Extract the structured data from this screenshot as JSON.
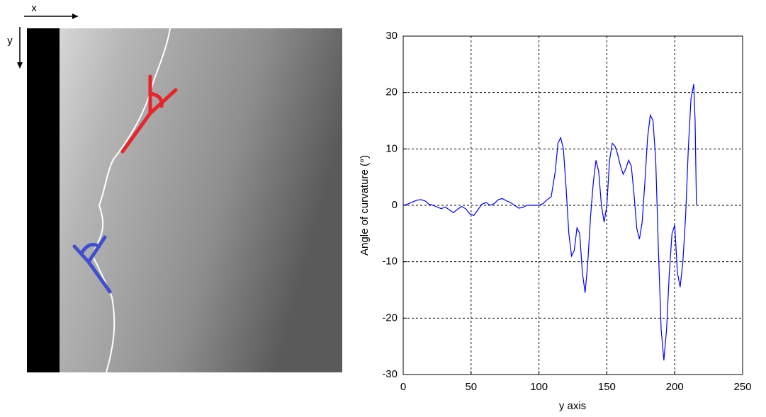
{
  "figure_labels": {
    "x_arrow": "x",
    "y_arrow": "y"
  },
  "chart_data": {
    "type": "line",
    "xlabel": "y axis",
    "ylabel": "Angle of curvature (°)",
    "xlim": [
      0,
      250
    ],
    "xticks": [
      0,
      50,
      100,
      150,
      200,
      250
    ],
    "ylim": [
      -30,
      30
    ],
    "yticks": [
      -30,
      -20,
      -10,
      0,
      10,
      20,
      30
    ],
    "grid": true,
    "series": [
      {
        "color": "#0000ff",
        "x": [
          0,
          3,
          6,
          10,
          13,
          16,
          19,
          22,
          25,
          28,
          31,
          34,
          37,
          40,
          43,
          46,
          49,
          52,
          55,
          58,
          61,
          64,
          67,
          70,
          73,
          76,
          79,
          82,
          85,
          88,
          91,
          95,
          100,
          103,
          106,
          109,
          112,
          114,
          116,
          118,
          120,
          122,
          124,
          126,
          128,
          130,
          132,
          134,
          136,
          138,
          140,
          142,
          144,
          146,
          148,
          150,
          152,
          154,
          156,
          158,
          160,
          162,
          164,
          166,
          168,
          170,
          172,
          174,
          176,
          178,
          180,
          182,
          184,
          186,
          188,
          190,
          192,
          194,
          196,
          198,
          200,
          202,
          204,
          206,
          208,
          210,
          212,
          214,
          215,
          216
        ],
        "values": [
          0,
          0.2,
          0.5,
          0.9,
          1.0,
          0.8,
          0.2,
          0,
          -0.3,
          -0.6,
          -0.3,
          -0.8,
          -1.3,
          -0.7,
          -0.2,
          -0.6,
          -1.5,
          -1.8,
          -0.8,
          0.2,
          0.5,
          0,
          0.3,
          1.0,
          1.2,
          0.8,
          0.5,
          0,
          -0.5,
          -0.4,
          0,
          0,
          0,
          0.3,
          1,
          1.5,
          6,
          11,
          12,
          10,
          3,
          -5,
          -9,
          -8,
          -4,
          -5,
          -12,
          -15.5,
          -10,
          -2,
          4,
          8,
          6,
          0,
          -3,
          0,
          8,
          11,
          10.5,
          9,
          7,
          5.5,
          6.5,
          8,
          7,
          2,
          -4,
          -6,
          -3,
          4,
          12,
          16,
          15,
          8,
          -8,
          -22,
          -27.5,
          -22,
          -12,
          -5,
          -3.5,
          -12,
          -14.5,
          -10,
          -2,
          10,
          19,
          21.5,
          15,
          0
        ]
      }
    ]
  }
}
